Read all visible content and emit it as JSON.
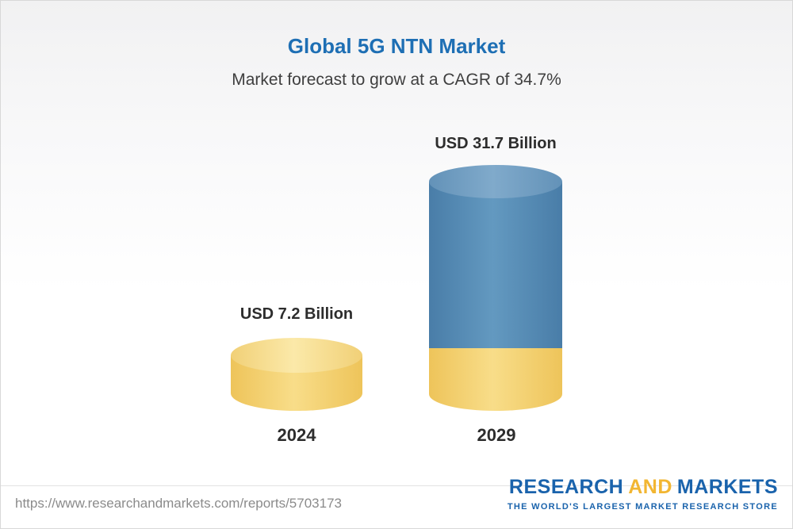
{
  "header": {
    "title": "Global 5G NTN Market",
    "subtitle": "Market forecast to grow at a CAGR of 34.7%"
  },
  "chart_data": {
    "type": "bar",
    "title": "Global 5G NTN Market",
    "subtitle": "Market forecast to grow at a CAGR of 34.7%",
    "cagr_percent": 34.7,
    "unit": "USD Billion",
    "categories": [
      "2024",
      "2029"
    ],
    "values": [
      7.2,
      31.7
    ],
    "value_labels": [
      "USD 7.2 Billion",
      "USD 31.7 Billion"
    ],
    "bar_colors": [
      "#F5CF6B",
      "#5287B0"
    ],
    "legend": "none",
    "grid": false,
    "layout_hint": "3D cylinder bars; 2029 bar has a gold base segment equal to the 2024 value with blue growth above it"
  },
  "footer": {
    "url": "https://www.researchandmarkets.com/reports/5703173",
    "logo": {
      "part1": "RESEARCH",
      "part2": "AND",
      "part3": "MARKETS",
      "tagline": "THE WORLD'S LARGEST MARKET RESEARCH STORE"
    },
    "colors": {
      "logo_blue": "#1A63AC",
      "logo_gold": "#F2B632",
      "title_blue": "#1E6FB4"
    }
  }
}
